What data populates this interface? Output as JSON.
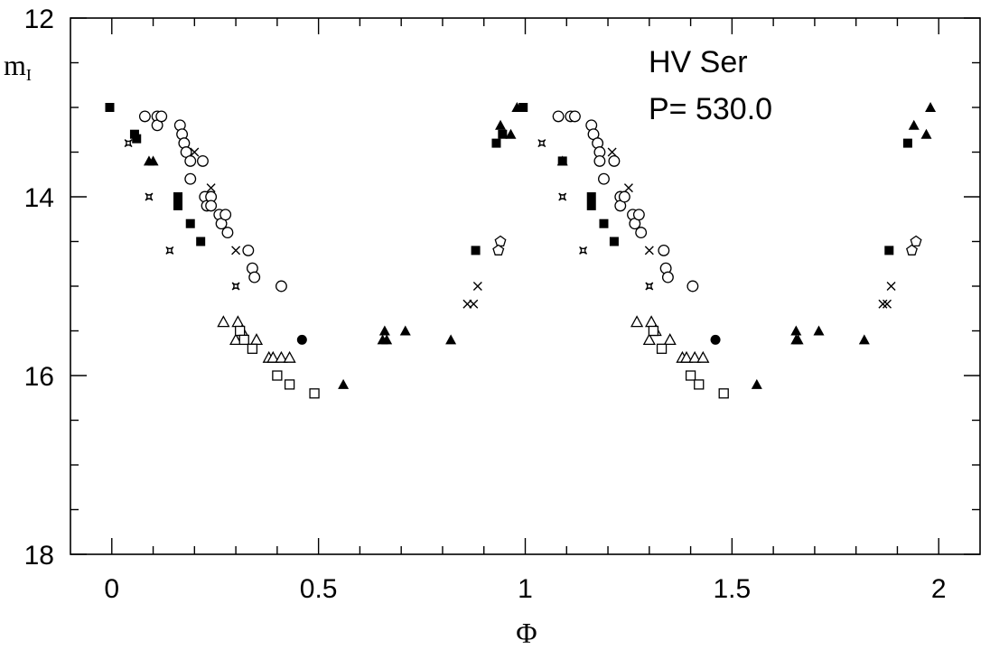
{
  "chart_data": {
    "type": "scatter",
    "title": "",
    "annotations": [
      "HV Ser",
      "P= 530.0"
    ],
    "xlabel": "Φ",
    "ylabel_main": "m",
    "ylabel_sub": "I",
    "xlim": [
      -0.1,
      2.1
    ],
    "ylim": [
      12,
      18
    ],
    "y_inverted": true,
    "grid": false,
    "x_ticks": [
      "0",
      "0.5",
      "1",
      "1.5",
      "2"
    ],
    "x_tick_values": [
      0,
      0.5,
      1,
      1.5,
      2
    ],
    "y_ticks": [
      "12",
      "14",
      "16",
      "18"
    ],
    "y_tick_values": [
      12,
      14,
      16,
      18
    ],
    "series": [
      {
        "marker": "filled-square",
        "points": [
          [
            -0.005,
            13.0
          ],
          [
            0.055,
            13.3
          ],
          [
            0.06,
            13.35
          ],
          [
            0.16,
            14.0
          ],
          [
            0.16,
            14.1
          ],
          [
            0.19,
            14.3
          ],
          [
            0.215,
            14.5
          ],
          [
            0.88,
            14.6
          ],
          [
            0.93,
            13.4
          ],
          [
            0.945,
            13.3
          ],
          [
            0.995,
            13.0
          ],
          [
            1.09,
            13.6
          ],
          [
            1.16,
            14.0
          ],
          [
            1.16,
            14.1
          ],
          [
            1.19,
            14.3
          ],
          [
            1.215,
            14.5
          ],
          [
            1.88,
            14.6
          ],
          [
            1.925,
            13.4
          ]
        ]
      },
      {
        "marker": "open-circle",
        "points": [
          [
            0.08,
            13.1
          ],
          [
            0.11,
            13.1
          ],
          [
            0.11,
            13.2
          ],
          [
            0.12,
            13.1
          ],
          [
            0.165,
            13.2
          ],
          [
            0.17,
            13.3
          ],
          [
            0.175,
            13.4
          ],
          [
            0.18,
            13.5
          ],
          [
            0.19,
            13.6
          ],
          [
            0.19,
            13.8
          ],
          [
            0.22,
            13.6
          ],
          [
            0.225,
            14.0
          ],
          [
            0.23,
            14.1
          ],
          [
            0.24,
            14.0
          ],
          [
            0.24,
            14.1
          ],
          [
            0.26,
            14.2
          ],
          [
            0.265,
            14.3
          ],
          [
            0.275,
            14.2
          ],
          [
            0.28,
            14.4
          ],
          [
            0.33,
            14.6
          ],
          [
            0.34,
            14.8
          ],
          [
            0.345,
            14.9
          ],
          [
            0.41,
            15.0
          ],
          [
            1.08,
            13.1
          ],
          [
            1.11,
            13.1
          ],
          [
            1.12,
            13.1
          ],
          [
            1.16,
            13.2
          ],
          [
            1.165,
            13.3
          ],
          [
            1.175,
            13.4
          ],
          [
            1.18,
            13.5
          ],
          [
            1.18,
            13.6
          ],
          [
            1.19,
            13.8
          ],
          [
            1.215,
            13.6
          ],
          [
            1.23,
            14.0
          ],
          [
            1.23,
            14.1
          ],
          [
            1.24,
            14.0
          ],
          [
            1.26,
            14.2
          ],
          [
            1.265,
            14.3
          ],
          [
            1.275,
            14.2
          ],
          [
            1.28,
            14.4
          ],
          [
            1.335,
            14.6
          ],
          [
            1.34,
            14.8
          ],
          [
            1.345,
            14.9
          ],
          [
            1.405,
            15.0
          ]
        ]
      },
      {
        "marker": "cross",
        "points": [
          [
            0.2,
            13.5
          ],
          [
            0.24,
            13.9
          ],
          [
            0.3,
            14.6
          ],
          [
            0.86,
            15.2
          ],
          [
            0.875,
            15.2
          ],
          [
            0.885,
            15.0
          ],
          [
            1.21,
            13.5
          ],
          [
            1.25,
            13.9
          ],
          [
            1.3,
            14.6
          ],
          [
            1.865,
            15.2
          ],
          [
            1.875,
            15.2
          ],
          [
            1.885,
            15.0
          ]
        ]
      },
      {
        "marker": "asterisk-star",
        "points": [
          [
            0.04,
            13.4
          ],
          [
            0.09,
            14.0
          ],
          [
            0.14,
            14.6
          ],
          [
            0.3,
            15.0
          ],
          [
            1.04,
            13.4
          ],
          [
            1.09,
            14.0
          ],
          [
            1.14,
            14.6
          ],
          [
            1.3,
            15.0
          ]
        ]
      },
      {
        "marker": "open-triangle",
        "points": [
          [
            0.27,
            15.4
          ],
          [
            0.3,
            15.6
          ],
          [
            0.305,
            15.4
          ],
          [
            0.315,
            15.5
          ],
          [
            0.35,
            15.6
          ],
          [
            0.38,
            15.8
          ],
          [
            0.39,
            15.8
          ],
          [
            0.41,
            15.8
          ],
          [
            0.43,
            15.8
          ],
          [
            1.27,
            15.4
          ],
          [
            1.3,
            15.6
          ],
          [
            1.305,
            15.4
          ],
          [
            1.315,
            15.5
          ],
          [
            1.35,
            15.6
          ],
          [
            1.38,
            15.8
          ],
          [
            1.39,
            15.8
          ],
          [
            1.41,
            15.8
          ],
          [
            1.43,
            15.8
          ]
        ]
      },
      {
        "marker": "open-square",
        "points": [
          [
            0.31,
            15.5
          ],
          [
            0.32,
            15.6
          ],
          [
            0.34,
            15.7
          ],
          [
            0.4,
            16.0
          ],
          [
            0.43,
            16.1
          ],
          [
            0.49,
            16.2
          ],
          [
            1.31,
            15.5
          ],
          [
            1.33,
            15.7
          ],
          [
            1.4,
            16.0
          ],
          [
            1.42,
            16.1
          ],
          [
            1.48,
            16.2
          ]
        ]
      },
      {
        "marker": "filled-triangle",
        "points": [
          [
            0.09,
            13.6
          ],
          [
            0.1,
            13.6
          ],
          [
            0.56,
            16.1
          ],
          [
            0.66,
            15.5
          ],
          [
            0.655,
            15.6
          ],
          [
            0.665,
            15.6
          ],
          [
            0.71,
            15.5
          ],
          [
            0.82,
            15.6
          ],
          [
            0.94,
            13.2
          ],
          [
            0.98,
            13.0
          ],
          [
            0.965,
            13.3
          ],
          [
            1.09,
            13.6
          ],
          [
            1.56,
            16.1
          ],
          [
            1.655,
            15.5
          ],
          [
            1.66,
            15.6
          ],
          [
            1.655,
            15.6
          ],
          [
            1.71,
            15.5
          ],
          [
            1.82,
            15.6
          ],
          [
            1.94,
            13.2
          ],
          [
            1.98,
            13.0
          ],
          [
            1.97,
            13.3
          ]
        ]
      },
      {
        "marker": "filled-circle",
        "points": [
          [
            0.46,
            15.6
          ],
          [
            1.46,
            15.6
          ]
        ]
      },
      {
        "marker": "open-pentagon",
        "points": [
          [
            0.94,
            14.5
          ],
          [
            0.935,
            14.6
          ],
          [
            1.935,
            14.6
          ],
          [
            1.945,
            14.5
          ]
        ]
      }
    ]
  }
}
